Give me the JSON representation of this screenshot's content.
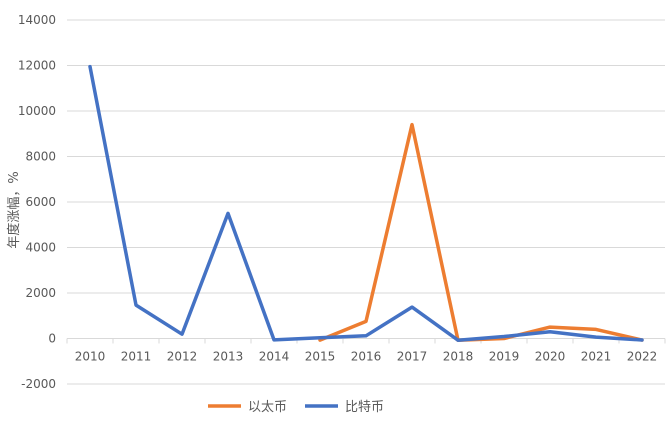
{
  "chart_data": {
    "type": "line",
    "title": "",
    "xlabel": "",
    "ylabel": "年度涨幅，%",
    "categories": [
      "2010",
      "2011",
      "2012",
      "2013",
      "2014",
      "2015",
      "2016",
      "2017",
      "2018",
      "2019",
      "2020",
      "2021",
      "2022"
    ],
    "ylim": [
      -2000,
      14000
    ],
    "yticks": [
      -2000,
      0,
      2000,
      4000,
      6000,
      8000,
      10000,
      12000,
      14000
    ],
    "grid": "horizontal",
    "legend_position": "bottom",
    "series": [
      {
        "name": "以太币",
        "color": "#ED7D31",
        "values": [
          null,
          null,
          null,
          null,
          null,
          -70,
          750,
          9400,
          -80,
          0,
          500,
          400,
          -70
        ]
      },
      {
        "name": "比特币",
        "color": "#4472C4",
        "values": [
          11950,
          1470,
          190,
          5500,
          -60,
          30,
          120,
          1380,
          -75,
          90,
          300,
          60,
          -65
        ]
      }
    ]
  }
}
